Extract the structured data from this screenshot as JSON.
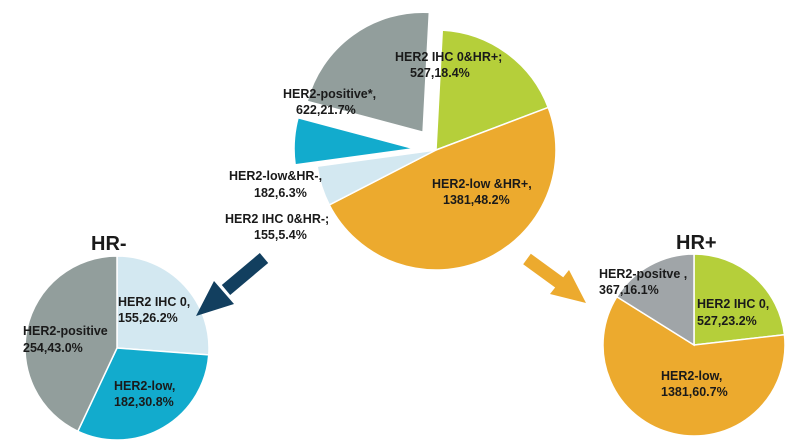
{
  "colors": {
    "her2_positive": "#929e9c",
    "ihc0_hrpos": "#b5cf3a",
    "low_hrpos": "#ecaa2e",
    "ihc0_hrneg": "#d3e8f1",
    "low_hrneg": "#12abcd",
    "arrow_left": "#123f5f",
    "arrow_right": "#ecaa2e"
  },
  "chart_data": [
    {
      "type": "pie",
      "title": "",
      "slices": [
        {
          "key": "ihc0_hrpos",
          "label": "HER2 IHC 0&HR+;",
          "count": 527,
          "percent": 18.4,
          "value_text": "527,18.4%",
          "color": "#b5cf3a"
        },
        {
          "key": "low_hrpos",
          "label": "HER2-low &HR+,",
          "count": 1381,
          "percent": 48.2,
          "value_text": "1381,48.2%",
          "color": "#ecaa2e"
        },
        {
          "key": "ihc0_hrneg",
          "label": "HER2 IHC 0&HR-;",
          "count": 155,
          "percent": 5.4,
          "value_text": "155,5.4%",
          "color": "#d3e8f1"
        },
        {
          "key": "low_hrneg",
          "label": "HER2-low&HR-,",
          "count": 182,
          "percent": 6.3,
          "value_text": "182,6.3%",
          "color": "#12abcd",
          "exploded": true
        },
        {
          "key": "her2_positive",
          "label": "HER2-positive*,",
          "count": 622,
          "percent": 21.7,
          "value_text": "622,21.7%",
          "color": "#929e9c",
          "exploded": true
        }
      ]
    },
    {
      "type": "pie",
      "title": "HR-",
      "slices": [
        {
          "key": "ihc0_hrneg",
          "label": "HER2 IHC 0,",
          "count": 155,
          "percent": 26.2,
          "value_text": "155,26.2%",
          "color": "#d3e8f1"
        },
        {
          "key": "low_hrneg",
          "label": "HER2-low,",
          "count": 182,
          "percent": 30.8,
          "value_text": "182,30.8%",
          "color": "#12abcd"
        },
        {
          "key": "her2_positive",
          "label": "HER2-positive",
          "count": 254,
          "percent": 43.0,
          "value_text": "254,43.0%",
          "color": "#929e9c"
        }
      ]
    },
    {
      "type": "pie",
      "title": "HR+",
      "slices": [
        {
          "key": "ihc0_hrpos",
          "label": "HER2 IHC 0,",
          "count": 527,
          "percent": 23.2,
          "value_text": "527,23.2%",
          "color": "#b5cf3a"
        },
        {
          "key": "low_hrpos",
          "label": "HER2-low,",
          "count": 1381,
          "percent": 60.7,
          "value_text": "1381,60.7%",
          "color": "#ecaa2e"
        },
        {
          "key": "her2_positive",
          "label": "HER2-positve ,",
          "count": 367,
          "percent": 16.1,
          "value_text": "367,16.1%",
          "color": "#a0a5a8"
        }
      ]
    }
  ]
}
